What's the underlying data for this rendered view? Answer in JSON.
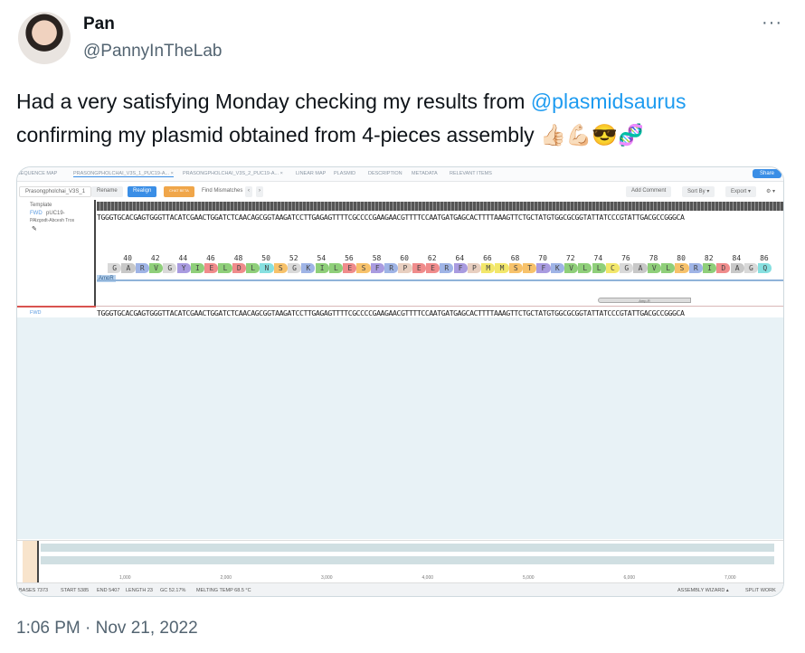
{
  "author": {
    "name": "Pan",
    "handle": "@PannyInTheLab"
  },
  "tweet": {
    "line1_pre": "Had a very satisfying Monday checking my results from ",
    "mention": "@plasmidsaurus",
    "line2": "confirming my plasmid obtained from 4-pieces assembly 👍🏻💪🏻😎🧬"
  },
  "timestamp": "1:06 PM · Nov 21, 2022",
  "more_icon": "more-horizontal-icon",
  "app": {
    "tabs": [
      "SEQUENCE MAP",
      "PRASONGPHOLCHAI_V3S_1_PUC19-A...  ×",
      "PRASONGPHOLCHAI_V3S_2_PUC19-A...  ×",
      "LINEAR MAP",
      "PLASMID",
      "DESCRIPTION",
      "METADATA",
      "RELEVANT ITEMS"
    ],
    "share": "Share",
    "toolbar": {
      "name_field": "Prasongpholchai_V3S_1",
      "rename": "Rename",
      "realign": "Realign",
      "badge": "CHAT BETA",
      "find": "Find Mismatches",
      "prev": "‹",
      "next": "›",
      "add_comment": "Add Comment",
      "sort_by": "Sort By ▾",
      "export": "Export ▾",
      "gear": "⚙ ▾"
    },
    "left_panel": {
      "template": "Template",
      "fwd": "FWD",
      "ref": "pUC19-",
      "ref2": "PAlzgodt-Abcesh Tros",
      "row2_fwd": "FWD"
    },
    "sequence": "TGGGTGCACGAGTGGGTTACATCGAACTGGATCTCAACAGCGGTAAGATCCTTGAGAGTTTTCGCCCCGAAGAACGTTTTCCAATGATGAGCACTTTTAAAGTTCTGCTATGTGGCGCGGTATTATCCCGTATTGACGCCGGGCA",
    "aa_numbers": [
      40,
      42,
      44,
      46,
      48,
      50,
      52,
      54,
      56,
      58,
      60,
      62,
      64,
      66,
      68,
      70,
      72,
      74,
      76,
      78,
      80,
      82,
      84,
      86
    ],
    "amino_acids": "GARVGYIELDLNSGKILESFRPEERFPMMSTFKVLLCGAVLSRIDAGQ",
    "aa_colors": {
      "G": "#d9d9d9",
      "A": "#c8c8c8",
      "R": "#9fb4e6",
      "V": "#8fcf7a",
      "Y": "#a99be0",
      "I": "#8fcf7a",
      "E": "#f08c8c",
      "L": "#8fcf7a",
      "D": "#f08c8c",
      "N": "#86e0e0",
      "S": "#f7c26b",
      "K": "#9fb4e6",
      "F": "#a99be0",
      "P": "#e8cfc0",
      "M": "#f2e76b",
      "T": "#f7c26b",
      "C": "#f2e76b",
      "Q": "#86e0e0"
    },
    "feature": "AmpR",
    "primer": "Amp-R",
    "minimap_ticks": [
      "1,000",
      "2,000",
      "3,000",
      "4,000",
      "5,000",
      "6,000",
      "7,000"
    ],
    "status": {
      "bases": "BASES 7373",
      "start": "START 5385",
      "end": "END 5407",
      "length": "LENGTH 23",
      "gc": "GC 52.17%",
      "tm": "MELTING TEMP 68.5 °C",
      "wizard": "ASSEMBLY WIZARD ▴",
      "split": "SPLIT WORK"
    }
  }
}
